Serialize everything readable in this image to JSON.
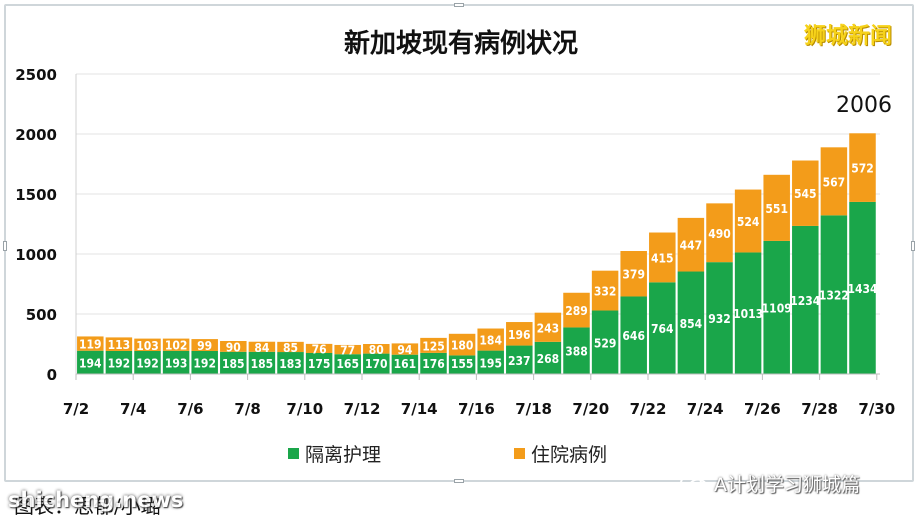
{
  "chart_data": {
    "type": "bar",
    "stacked": true,
    "title": "新加坡现有病例状况",
    "categories": [
      "7/2",
      "7/3",
      "7/4",
      "7/5",
      "7/6",
      "7/7",
      "7/8",
      "7/9",
      "7/10",
      "7/11",
      "7/12",
      "7/13",
      "7/14",
      "7/15",
      "7/16",
      "7/17",
      "7/18",
      "7/19",
      "7/20",
      "7/21",
      "7/22",
      "7/23",
      "7/24",
      "7/25",
      "7/26",
      "7/27",
      "7/28",
      "7/29"
    ],
    "x_tick_labels": [
      "7/2",
      "7/4",
      "7/6",
      "7/8",
      "7/10",
      "7/12",
      "7/14",
      "7/16",
      "7/18",
      "7/20",
      "7/22",
      "7/24",
      "7/26",
      "7/28",
      "7/30"
    ],
    "series": [
      {
        "name": "隔离护理",
        "color": "#1aa64a",
        "values": [
          194,
          192,
          192,
          193,
          192,
          185,
          185,
          183,
          175,
          165,
          170,
          161,
          176,
          155,
          195,
          237,
          268,
          388,
          529,
          646,
          764,
          854,
          932,
          1013,
          1109,
          1234,
          1322,
          1434
        ]
      },
      {
        "name": "住院病例",
        "color": "#f39c1a",
        "values": [
          119,
          113,
          103,
          102,
          99,
          90,
          84,
          85,
          76,
          77,
          80,
          94,
          125,
          180,
          184,
          196,
          243,
          289,
          332,
          379,
          415,
          447,
          490,
          524,
          551,
          545,
          567,
          572
        ]
      }
    ],
    "total_label": "2006",
    "ylim": [
      0,
      2500
    ],
    "y_ticks": [
      0,
      500,
      1000,
      1500,
      2000,
      2500
    ],
    "grid": true,
    "legend_position": "bottom"
  },
  "watermark": "狮城新闻",
  "wechat_label": "A计划学习狮城篇",
  "caption": "图表：思郁/小璐",
  "site_mark": "shicheng.news"
}
